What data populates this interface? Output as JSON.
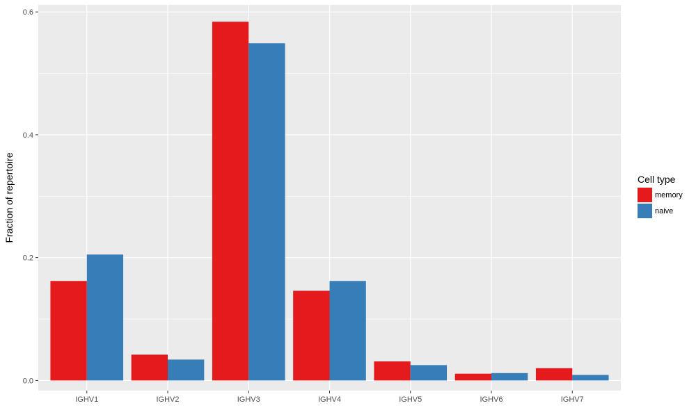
{
  "chart_data": {
    "type": "bar",
    "xlabel": "",
    "ylabel": "Fraction of repertoire",
    "categories": [
      "IGHV1",
      "IGHV2",
      "IGHV3",
      "IGHV4",
      "IGHV5",
      "IGHV6",
      "IGHV7"
    ],
    "series": [
      {
        "name": "memory",
        "color": "#E41A1C",
        "values": [
          0.162,
          0.042,
          0.584,
          0.146,
          0.031,
          0.011,
          0.02
        ]
      },
      {
        "name": "naive",
        "color": "#377EB8",
        "values": [
          0.205,
          0.034,
          0.549,
          0.162,
          0.025,
          0.012,
          0.009
        ]
      }
    ],
    "ylim": [
      -0.0165,
      0.6115
    ],
    "yticks": [
      0.0,
      0.2,
      0.4,
      0.6
    ],
    "ytick_labels": [
      "0.0",
      "0.2",
      "0.4",
      "0.6"
    ],
    "grid": true,
    "legend": {
      "title": "Cell type",
      "position": "right"
    },
    "panel_background": "#EBEBEB",
    "grid_color": "#FFFFFF"
  }
}
